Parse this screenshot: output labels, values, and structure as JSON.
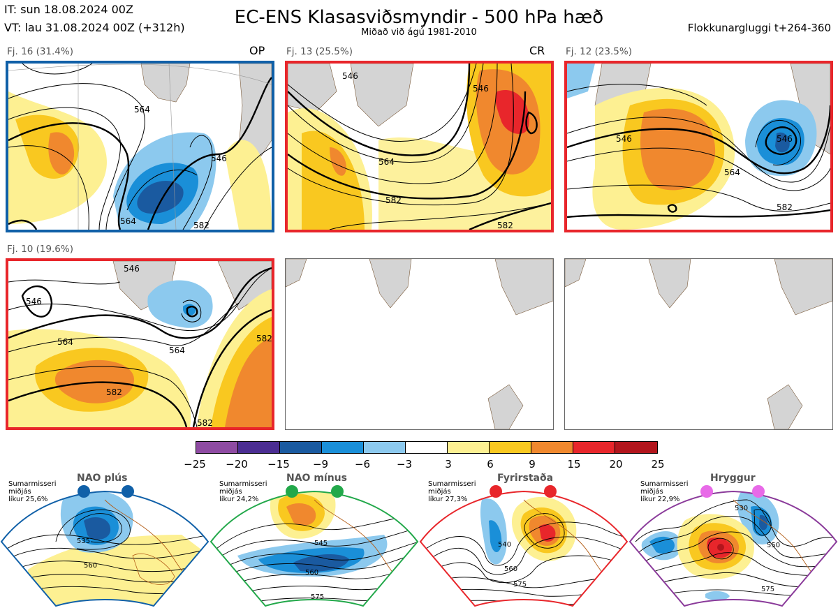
{
  "header": {
    "init_time": "IT: sun 18.08.2024 00Z",
    "valid_time": "VT: lau 31.08.2024 00Z  (+312h)",
    "title": "EC-ENS Klasasviðsmyndir - 500 hPa hæð",
    "subtitle": "Miðað við ágú 1981-2010",
    "window": "Flokkunargluggi t+264-360"
  },
  "clusters": [
    {
      "label": "Fj. 16 (31.4%)",
      "tag": "OP",
      "frame_color": "#1060a8",
      "contour_labels": [
        "564",
        "546",
        "564",
        "582"
      ]
    },
    {
      "label": "Fj. 13 (25.5%)",
      "tag": "CR",
      "frame_color": "#e8262b",
      "contour_labels": [
        "546",
        "564",
        "582",
        "546",
        "582"
      ]
    },
    {
      "label": "Fj. 12 (23.5%)",
      "tag": "",
      "frame_color": "#e8262b",
      "contour_labels": [
        "546",
        "564",
        "582",
        "546"
      ]
    },
    {
      "label": "Fj. 10 (19.6%)",
      "tag": "",
      "frame_color": "#e8262b",
      "contour_labels": [
        "546",
        "546",
        "564",
        "564",
        "582",
        "582",
        "582"
      ]
    }
  ],
  "colorbar": {
    "unit_note": "",
    "ticks": [
      "−25",
      "−20",
      "−15",
      "−9",
      "−6",
      "−3",
      "3",
      "6",
      "9",
      "15",
      "20",
      "25"
    ],
    "colors": [
      "#8e4ba2",
      "#4b2d92",
      "#1a5aa0",
      "#1a8fd8",
      "#8cc9ee",
      "#ffffff",
      "#fdf092",
      "#f9c820",
      "#f0882e",
      "#e8262b",
      "#b2151c"
    ]
  },
  "regimes": [
    {
      "name": "NAO plús",
      "info": [
        "Sumarmisseri",
        "miðjás",
        "líkur 25,6%"
      ],
      "dot_color": "#1060a8",
      "frame_color": "#1060a8",
      "contour_labels": [
        "535",
        "560"
      ]
    },
    {
      "name": "NAO mínus",
      "info": [
        "Sumarmisseri",
        "miðjás",
        "líkur 24,2%"
      ],
      "dot_color": "#22a84a",
      "frame_color": "#22a84a",
      "contour_labels": [
        "545",
        "560",
        "575"
      ]
    },
    {
      "name": "Fyrirstaða",
      "info": [
        "Sumarmisseri",
        "miðjás",
        "líkur 27,3%"
      ],
      "dot_color": "#e8262b",
      "frame_color": "#e8262b",
      "contour_labels": [
        "540",
        "560",
        "575"
      ]
    },
    {
      "name": "Hryggur",
      "info": [
        "Sumarmisseri",
        "miðjás",
        "líkur 22,9%"
      ],
      "dot_color": "#e86ae8",
      "frame_color": "#8a3a9a",
      "contour_labels": [
        "530",
        "550",
        "575"
      ]
    }
  ]
}
